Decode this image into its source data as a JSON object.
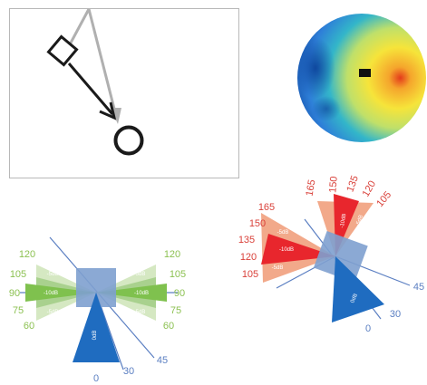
{
  "figure": {
    "colors": {
      "blue": "#1f6cc0",
      "box_blue": "#7ea0cf",
      "green_light": "#a9d18e",
      "green_mid": "#7fc14e",
      "red": "#e8262d",
      "red_light": "#f2a98a",
      "red_label": "#d9413a",
      "green_label": "#8cc152",
      "axis_blue": "#5b7fc2"
    },
    "sketch_panel": {
      "arrow_gray": "#b0b0b0",
      "arrow_black": "#1a1a1a"
    },
    "heatmap_panel": {
      "colormap": [
        "#0b3f99",
        "#2e7fd8",
        "#33b6c9",
        "#bfe06a",
        "#f6e43a",
        "#f5a52c",
        "#e43b1b"
      ]
    },
    "left_polar": {
      "label_0": "0",
      "label_30": "30",
      "label_45": "45",
      "label_60_l": "60",
      "label_75_l": "75",
      "label_90_l": "90",
      "label_105_l": "105",
      "label_120_l": "120",
      "label_60_r": "60",
      "label_75_r": "75",
      "label_90_r": "90",
      "label_105_r": "105",
      "label_120_r": "120",
      "db_5_l": "-5dB",
      "db_10_l": "-10dB",
      "db_5b_l": "-5dB",
      "db_5_r": "-5dB",
      "db_10_r": "-10dB",
      "db_5b_r": "-5dB",
      "db_0": "0dB"
    },
    "right_polar": {
      "label_0": "0",
      "label_30": "30",
      "label_45": "45",
      "label_105_l": "105",
      "label_120_l": "120",
      "label_135_l": "135",
      "label_150_l": "150",
      "label_165_l": "165",
      "label_150_t": "150",
      "label_135_t": "135",
      "label_120_t": "120",
      "label_105_t": "105",
      "db_5_l": "-5dB",
      "db_10_l": "-10dB",
      "db_5b_l": "-5dB",
      "db_10_t": "-10dB",
      "db_5_t": "-5dB",
      "db_0": "0dB"
    }
  }
}
